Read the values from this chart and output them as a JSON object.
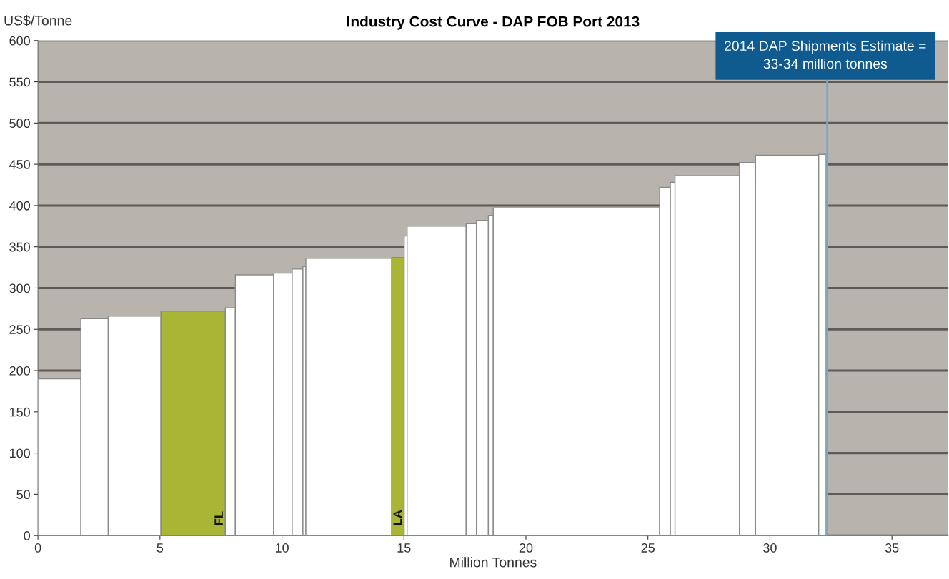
{
  "chart_data": {
    "type": "histogram",
    "title": "Industry Cost Curve - DAP FOB Port 2013",
    "xlabel": "Million Tonnes",
    "ylabel": "US$/Tonne",
    "bins": [
      0,
      1.76,
      2.88,
      5.04,
      7.68,
      8.09,
      9.66,
      10.42,
      10.86,
      10.98,
      14.5,
      15.01,
      15.13,
      17.55,
      17.97,
      18.46,
      18.66,
      25.48,
      25.92,
      26.11,
      28.75,
      29.41,
      32.0,
      32.3
    ],
    "values": [
      190,
      263,
      266,
      272,
      276,
      316,
      318,
      323,
      326,
      336,
      337,
      363,
      375,
      378,
      382,
      388,
      397,
      422,
      428,
      436,
      452,
      461,
      462
    ],
    "colors": [
      "#ffffff",
      "#ffffff",
      "#ffffff",
      "#a9b534",
      "#ffffff",
      "#ffffff",
      "#ffffff",
      "#ffffff",
      "#ffffff",
      "#ffffff",
      "#a9b534",
      "#ffffff",
      "#ffffff",
      "#ffffff",
      "#ffffff",
      "#ffffff",
      "#ffffff",
      "#ffffff",
      "#ffffff",
      "#ffffff",
      "#ffffff",
      "#ffffff",
      "#ffffff"
    ],
    "xlim": [
      0,
      37.3
    ],
    "ylim": [
      0,
      600
    ],
    "xticks": [
      0,
      5,
      10,
      15,
      20,
      25,
      30,
      35
    ],
    "yticks": [
      0,
      50,
      100,
      150,
      200,
      250,
      300,
      350,
      400,
      450,
      500,
      550,
      600
    ],
    "grid": "y",
    "ref_lines": [
      {
        "axis": "x",
        "value": 32.35,
        "color": "#7aa6c8"
      }
    ],
    "annotations": [
      "2014 DAP Shipments Estimate =\n33-34 million tonnes",
      {
        "text": "FL",
        "x": 7.45,
        "y": 0
      },
      {
        "text": "LA",
        "x": 14.78,
        "y": 0
      }
    ]
  }
}
